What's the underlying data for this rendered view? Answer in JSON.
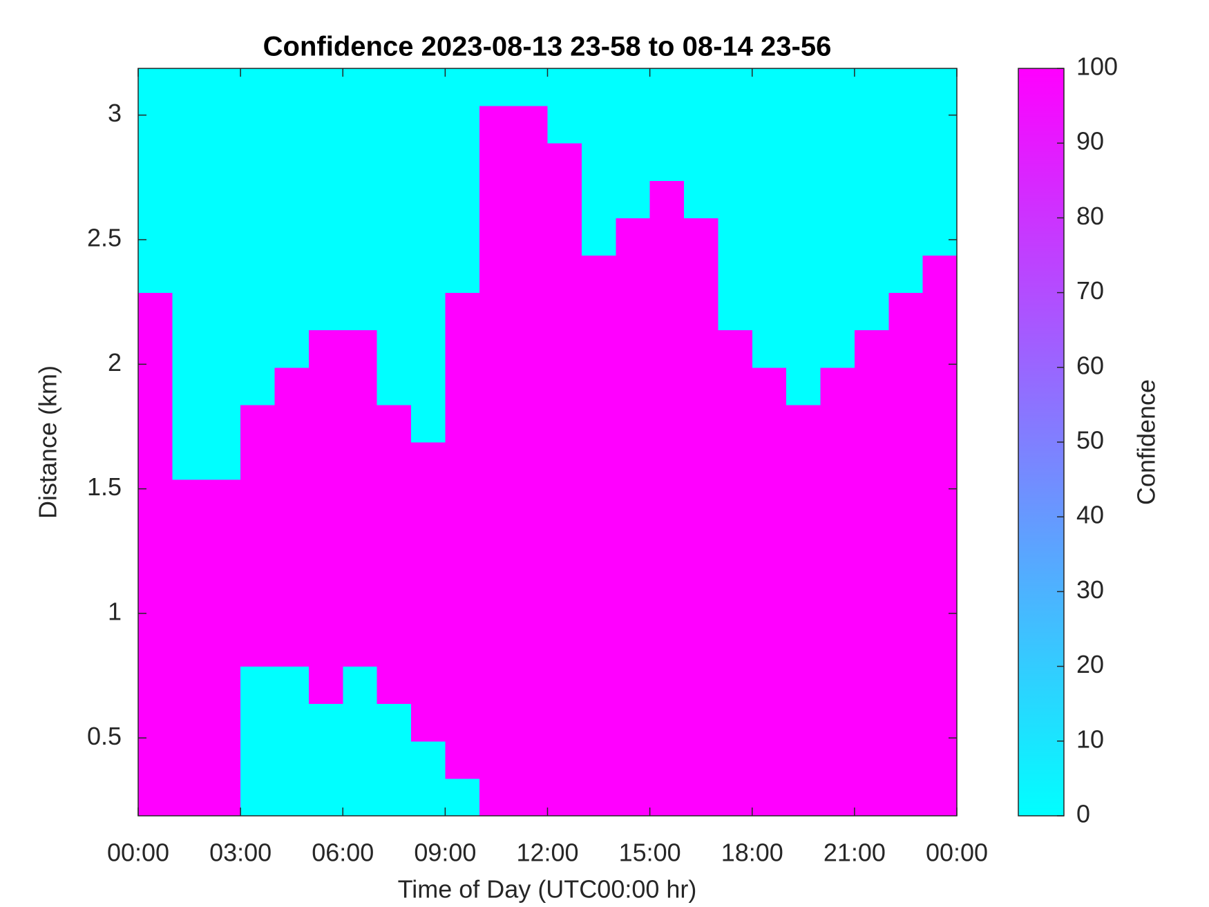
{
  "chart_data": {
    "type": "heatmap",
    "title": "Confidence 2023-08-13 23-58 to 08-14 23-56",
    "xlabel": "Time of Day (UTC00:00 hr)",
    "ylabel": "Distance (km)",
    "colorbar_label": "Confidence",
    "colormap": [
      "#00ffff",
      "#ff00ff"
    ],
    "clim": [
      0,
      100
    ],
    "cticks": [
      0,
      10,
      20,
      30,
      40,
      50,
      60,
      70,
      80,
      90,
      100
    ],
    "xlim": [
      0,
      24
    ],
    "ylim": [
      0.1875,
      3.1875
    ],
    "xticks": [
      {
        "value": 0,
        "label": "00:00"
      },
      {
        "value": 3,
        "label": "03:00"
      },
      {
        "value": 6,
        "label": "06:00"
      },
      {
        "value": 9,
        "label": "09:00"
      },
      {
        "value": 12,
        "label": "12:00"
      },
      {
        "value": 15,
        "label": "15:00"
      },
      {
        "value": 18,
        "label": "18:00"
      },
      {
        "value": 21,
        "label": "21:00"
      },
      {
        "value": 24,
        "label": "00:00"
      }
    ],
    "yticks": [
      0.5,
      1,
      1.5,
      2,
      2.5,
      3
    ],
    "x_edges": [
      0,
      1,
      2,
      3,
      4,
      5,
      6,
      7,
      8,
      9,
      10,
      11,
      12,
      13,
      14,
      15,
      16,
      17,
      18,
      19,
      20,
      21,
      22,
      23,
      24
    ],
    "y_edges": [
      0.1875,
      0.3375,
      0.4875,
      0.6375,
      0.7875,
      0.9375,
      1.0875,
      1.2375,
      1.3875,
      1.5375,
      1.6875,
      1.8375,
      1.9875,
      2.1375,
      2.2875,
      2.4375,
      2.5875,
      2.7375,
      2.8875,
      3.0375,
      3.1875
    ],
    "z": [
      [
        100,
        100,
        100,
        0,
        0,
        0,
        0,
        0,
        0,
        0,
        100,
        100,
        100,
        100,
        100,
        100,
        100,
        100,
        100,
        100,
        100,
        100,
        100,
        100
      ],
      [
        100,
        100,
        100,
        0,
        0,
        0,
        0,
        0,
        0,
        100,
        100,
        100,
        100,
        100,
        100,
        100,
        100,
        100,
        100,
        100,
        100,
        100,
        100,
        100
      ],
      [
        100,
        100,
        100,
        0,
        0,
        0,
        0,
        0,
        100,
        100,
        100,
        100,
        100,
        100,
        100,
        100,
        100,
        100,
        100,
        100,
        100,
        100,
        100,
        100
      ],
      [
        100,
        100,
        100,
        0,
        0,
        100,
        0,
        100,
        100,
        100,
        100,
        100,
        100,
        100,
        100,
        100,
        100,
        100,
        100,
        100,
        100,
        100,
        100,
        100
      ],
      [
        100,
        100,
        100,
        100,
        100,
        100,
        100,
        100,
        100,
        100,
        100,
        100,
        100,
        100,
        100,
        100,
        100,
        100,
        100,
        100,
        100,
        100,
        100,
        100
      ],
      [
        100,
        100,
        100,
        100,
        100,
        100,
        100,
        100,
        100,
        100,
        100,
        100,
        100,
        100,
        100,
        100,
        100,
        100,
        100,
        100,
        100,
        100,
        100,
        100
      ],
      [
        100,
        100,
        100,
        100,
        100,
        100,
        100,
        100,
        100,
        100,
        100,
        100,
        100,
        100,
        100,
        100,
        100,
        100,
        100,
        100,
        100,
        100,
        100,
        100
      ],
      [
        100,
        100,
        100,
        100,
        100,
        100,
        100,
        100,
        100,
        100,
        100,
        100,
        100,
        100,
        100,
        100,
        100,
        100,
        100,
        100,
        100,
        100,
        100,
        100
      ],
      [
        100,
        100,
        100,
        100,
        100,
        100,
        100,
        100,
        100,
        100,
        100,
        100,
        100,
        100,
        100,
        100,
        100,
        100,
        100,
        100,
        100,
        100,
        100,
        100
      ],
      [
        100,
        0,
        0,
        100,
        100,
        100,
        100,
        100,
        100,
        100,
        100,
        100,
        100,
        100,
        100,
        100,
        100,
        100,
        100,
        100,
        100,
        100,
        100,
        100
      ],
      [
        100,
        0,
        0,
        100,
        100,
        100,
        100,
        100,
        0,
        100,
        100,
        100,
        100,
        100,
        100,
        100,
        100,
        100,
        100,
        100,
        100,
        100,
        100,
        100
      ],
      [
        100,
        0,
        0,
        0,
        100,
        100,
        100,
        0,
        0,
        100,
        100,
        100,
        100,
        100,
        100,
        100,
        100,
        100,
        100,
        0,
        100,
        100,
        100,
        100
      ],
      [
        100,
        0,
        0,
        0,
        0,
        100,
        100,
        0,
        0,
        100,
        100,
        100,
        100,
        100,
        100,
        100,
        100,
        100,
        0,
        0,
        0,
        100,
        100,
        100
      ],
      [
        100,
        0,
        0,
        0,
        0,
        0,
        0,
        0,
        0,
        100,
        100,
        100,
        100,
        100,
        100,
        100,
        100,
        0,
        0,
        0,
        0,
        0,
        100,
        100
      ],
      [
        0,
        0,
        0,
        0,
        0,
        0,
        0,
        0,
        0,
        0,
        100,
        100,
        100,
        100,
        100,
        100,
        100,
        0,
        0,
        0,
        0,
        0,
        0,
        100
      ],
      [
        0,
        0,
        0,
        0,
        0,
        0,
        0,
        0,
        0,
        0,
        100,
        100,
        100,
        0,
        100,
        100,
        100,
        0,
        0,
        0,
        0,
        0,
        0,
        0
      ],
      [
        0,
        0,
        0,
        0,
        0,
        0,
        0,
        0,
        0,
        0,
        100,
        100,
        100,
        0,
        0,
        100,
        0,
        0,
        0,
        0,
        0,
        0,
        0,
        0
      ],
      [
        0,
        0,
        0,
        0,
        0,
        0,
        0,
        0,
        0,
        0,
        100,
        100,
        100,
        0,
        0,
        0,
        0,
        0,
        0,
        0,
        0,
        0,
        0,
        0
      ],
      [
        0,
        0,
        0,
        0,
        0,
        0,
        0,
        0,
        0,
        0,
        100,
        100,
        0,
        0,
        0,
        0,
        0,
        0,
        0,
        0,
        0,
        0,
        0,
        0
      ],
      [
        0,
        0,
        0,
        0,
        0,
        0,
        0,
        0,
        0,
        0,
        0,
        0,
        0,
        0,
        0,
        0,
        0,
        0,
        0,
        0,
        0,
        0,
        0,
        0
      ]
    ]
  }
}
